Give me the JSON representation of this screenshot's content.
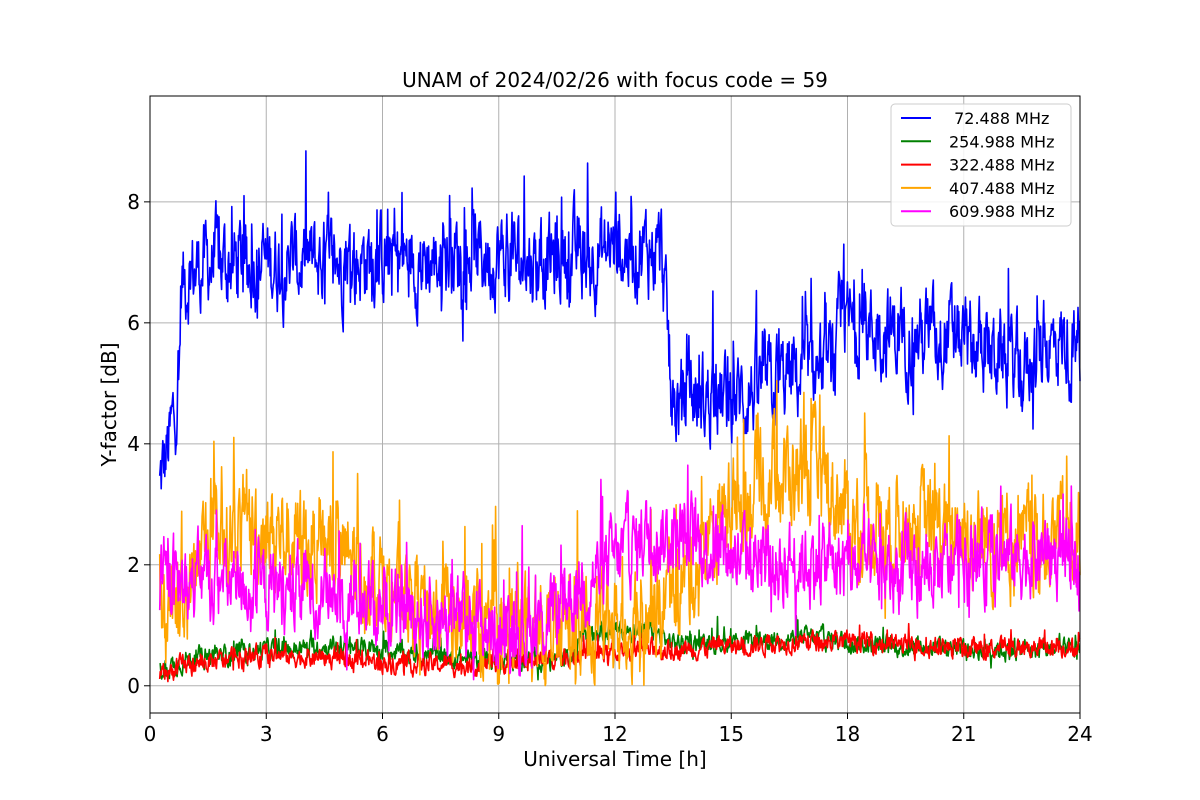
{
  "chart_data": {
    "type": "line",
    "title": "UNAM of 2024/02/26 with focus code = 59",
    "xlabel": "Universal Time [h]",
    "ylabel": "Y-factor [dB]",
    "xlim": [
      0,
      24
    ],
    "ylim": [
      -0.45,
      9.75
    ],
    "xticks": [
      0,
      3,
      6,
      9,
      12,
      15,
      18,
      21,
      24
    ],
    "yticks": [
      0,
      2,
      4,
      6,
      8
    ],
    "grid": true,
    "legend_position": "top-right",
    "series": [
      {
        "name": " 72.488 MHz",
        "color": "#0000ff",
        "x": [
          0.25,
          0.5,
          0.75,
          0.8,
          1.0,
          1.5,
          2.0,
          3.0,
          4.0,
          5.0,
          6.0,
          7.0,
          8.0,
          9.0,
          10.0,
          11.0,
          12.0,
          12.7,
          13.2,
          13.5,
          13.6,
          14.0,
          15.0,
          16.0,
          17.0,
          17.7,
          17.8,
          18.5,
          19.5,
          20.5,
          21.5,
          22.5,
          23.5,
          24.0
        ],
        "y": [
          3.3,
          4.0,
          5.0,
          6.6,
          6.8,
          7.0,
          7.0,
          7.0,
          7.0,
          7.0,
          7.1,
          7.0,
          7.1,
          7.1,
          7.0,
          7.1,
          7.2,
          7.2,
          7.2,
          4.5,
          4.6,
          4.8,
          4.7,
          5.0,
          5.2,
          5.3,
          6.0,
          5.9,
          5.8,
          5.8,
          5.6,
          5.3,
          5.7,
          5.4
        ],
        "noise": 1.1
      },
      {
        "name": "254.988 MHz",
        "color": "#008000",
        "x": [
          0.25,
          1.0,
          3.0,
          5.0,
          7.0,
          9.0,
          11.0,
          11.1,
          12.0,
          13.0,
          13.5,
          14.0,
          17.0,
          19.0,
          22.0,
          24.0
        ],
        "y": [
          0.25,
          0.45,
          0.6,
          0.65,
          0.5,
          0.4,
          0.45,
          0.9,
          0.9,
          0.9,
          0.7,
          0.7,
          0.8,
          0.65,
          0.6,
          0.6
        ],
        "noise": 0.25
      },
      {
        "name": "322.488 MHz",
        "color": "#ff0000",
        "x": [
          0.25,
          1.0,
          3.0,
          5.0,
          7.0,
          9.0,
          11.0,
          13.0,
          15.0,
          17.0,
          19.0,
          21.0,
          23.0,
          24.0
        ],
        "y": [
          0.2,
          0.35,
          0.5,
          0.45,
          0.35,
          0.35,
          0.5,
          0.6,
          0.65,
          0.75,
          0.7,
          0.6,
          0.65,
          0.65
        ],
        "noise": 0.25
      },
      {
        "name": "407.488 MHz",
        "color": "#ffa500",
        "x": [
          0.25,
          1.0,
          1.5,
          3.0,
          4.5,
          6.0,
          7.5,
          9.0,
          10.5,
          12.0,
          13.0,
          14.0,
          15.0,
          16.0,
          17.0,
          17.5,
          18.0,
          19.0,
          20.0,
          21.0,
          22.0,
          23.0,
          24.0
        ],
        "y": [
          1.0,
          1.5,
          2.5,
          2.6,
          2.3,
          1.8,
          1.2,
          0.8,
          0.9,
          1.0,
          1.2,
          1.9,
          3.0,
          3.4,
          3.5,
          3.3,
          2.8,
          2.6,
          2.7,
          2.5,
          2.4,
          2.3,
          2.6
        ],
        "noise": 1.3
      },
      {
        "name": "609.988 MHz",
        "color": "#ff00ff",
        "x": [
          0.25,
          1.0,
          2.0,
          3.0,
          4.0,
          5.0,
          6.0,
          7.0,
          8.0,
          9.0,
          10.0,
          11.0,
          12.0,
          13.0,
          14.0,
          15.0,
          16.0,
          17.0,
          18.0,
          19.0,
          20.0,
          21.0,
          22.0,
          23.0,
          24.0
        ],
        "y": [
          1.5,
          1.7,
          1.7,
          1.6,
          1.6,
          1.5,
          1.4,
          1.2,
          1.1,
          0.9,
          1.0,
          1.6,
          2.1,
          2.5,
          2.4,
          2.2,
          2.0,
          2.1,
          2.0,
          1.9,
          1.9,
          2.0,
          2.1,
          2.2,
          2.1
        ],
        "noise": 1.0
      }
    ]
  }
}
